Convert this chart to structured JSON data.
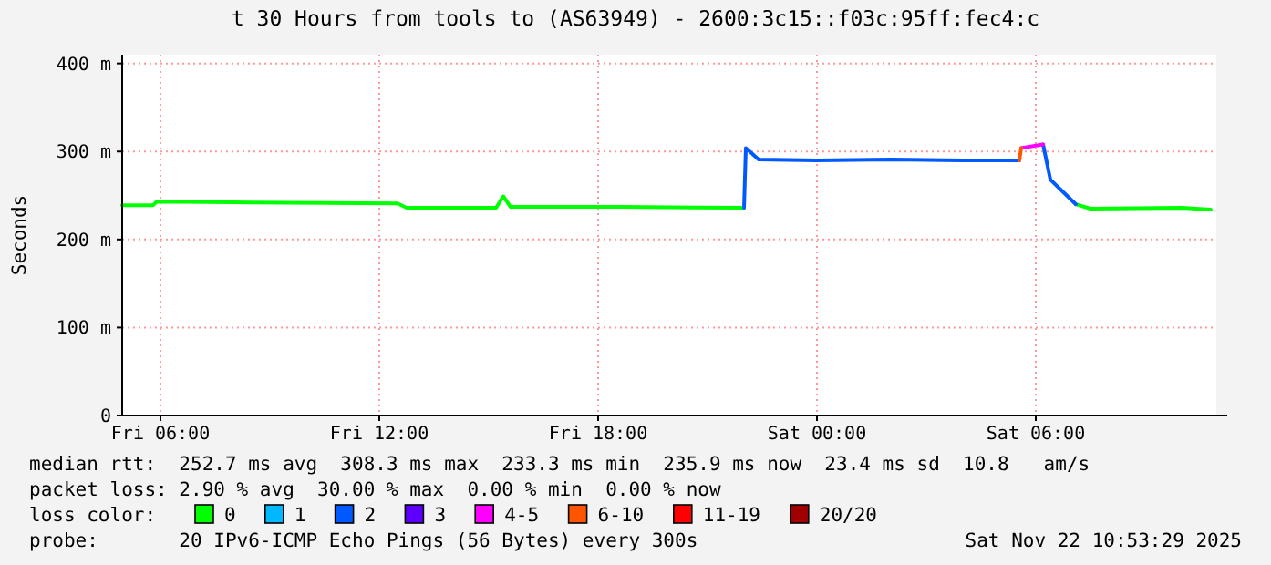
{
  "chart_data": {
    "type": "line",
    "title": "t 30 Hours from tools to (AS63949) - 2600:3c15::f03c:95ff:fec4:c",
    "ylabel": "Seconds",
    "x": [
      "2025-11-21T04:57",
      "2025-11-21T05:48",
      "2025-11-21T05:54",
      "2025-11-21T08:30",
      "2025-11-21T12:30",
      "2025-11-21T12:45",
      "2025-11-21T15:12",
      "2025-11-21T15:24",
      "2025-11-21T15:36",
      "2025-11-21T18:36",
      "2025-11-21T21:57",
      "2025-11-21T22:00",
      "2025-11-21T22:03",
      "2025-11-21T22:24",
      "2025-11-22T00:00",
      "2025-11-22T02:00",
      "2025-11-22T04:00",
      "2025-11-22T05:33",
      "2025-11-22T05:36",
      "2025-11-22T06:12",
      "2025-11-22T06:24",
      "2025-11-22T07:06",
      "2025-11-22T07:30",
      "2025-11-22T10:00",
      "2025-11-22T10:48"
    ],
    "series": [
      {
        "name": "0",
        "color": "#00ff00",
        "values": [
          239,
          239,
          243,
          242,
          241,
          236,
          236,
          249,
          237,
          237,
          236,
          236,
          null,
          null,
          null,
          null,
          null,
          null,
          null,
          null,
          null,
          240,
          235,
          236,
          234
        ]
      },
      {
        "name": "1",
        "color": "#00b8ff",
        "values": [
          null,
          null,
          null,
          null,
          null,
          null,
          null,
          null,
          null,
          null,
          null,
          null,
          null,
          null,
          null,
          null,
          null,
          null,
          null,
          null,
          null,
          null,
          null,
          null,
          null
        ]
      },
      {
        "name": "2",
        "color": "#0059ff",
        "values": [
          null,
          null,
          null,
          null,
          null,
          null,
          null,
          null,
          null,
          null,
          null,
          236,
          304,
          291,
          290,
          291,
          290,
          290,
          null,
          308,
          268,
          240,
          null,
          null,
          null
        ]
      },
      {
        "name": "3",
        "color": "#5e00ff",
        "values": [
          null,
          null,
          null,
          null,
          null,
          null,
          null,
          null,
          null,
          null,
          null,
          null,
          null,
          null,
          null,
          null,
          null,
          null,
          null,
          null,
          null,
          null,
          null,
          null,
          null
        ]
      },
      {
        "name": "4-5",
        "color": "#ff00ff",
        "values": [
          null,
          null,
          null,
          null,
          null,
          null,
          null,
          null,
          null,
          null,
          null,
          null,
          null,
          null,
          null,
          null,
          null,
          null,
          304,
          308,
          null,
          null,
          null,
          null,
          null
        ]
      },
      {
        "name": "6-10",
        "color": "#ff5500",
        "values": [
          null,
          null,
          null,
          null,
          null,
          null,
          null,
          null,
          null,
          null,
          null,
          null,
          null,
          null,
          null,
          null,
          null,
          290,
          304,
          null,
          null,
          null,
          null,
          null,
          null
        ]
      },
      {
        "name": "11-19",
        "color": "#ff0000",
        "values": [
          null,
          null,
          null,
          null,
          null,
          null,
          null,
          null,
          null,
          null,
          null,
          null,
          null,
          null,
          null,
          null,
          null,
          null,
          null,
          null,
          null,
          null,
          null,
          null,
          null
        ]
      },
      {
        "name": "20/20",
        "color": "#a10000",
        "values": [
          null,
          null,
          null,
          null,
          null,
          null,
          null,
          null,
          null,
          null,
          null,
          null,
          null,
          null,
          null,
          null,
          null,
          null,
          null,
          null,
          null,
          null,
          null,
          null,
          null
        ]
      }
    ],
    "xlim": [
      "2025-11-21T04:57",
      "2025-11-22T10:57"
    ],
    "xticks": [
      {
        "value": "2025-11-21T06:00",
        "label": "Fri 06:00"
      },
      {
        "value": "2025-11-21T12:00",
        "label": "Fri 12:00"
      },
      {
        "value": "2025-11-21T18:00",
        "label": "Fri 18:00"
      },
      {
        "value": "2025-11-22T00:00",
        "label": "Sat 00:00"
      },
      {
        "value": "2025-11-22T06:00",
        "label": "Sat 06:00"
      }
    ],
    "ylim": [
      0,
      410
    ],
    "yticks": [
      0,
      {
        "value": 100,
        "label": "100 m"
      },
      {
        "value": 200,
        "label": "200 m"
      },
      {
        "value": 300,
        "label": "300 m"
      },
      {
        "value": 400,
        "label": "400 m"
      }
    ],
    "grid": true,
    "legend": "bottom",
    "legend_title": "loss color:",
    "annotations": [
      "median rtt:  252.7 ms avg  308.3 ms max  233.3 ms min  235.9 ms now  23.4 ms sd  10.8   am/s",
      "packet loss: 2.90 % avg  30.00 % max  0.00 % min  0.00 % now",
      "probe:       20 IPv6-ICMP Echo Pings (56 Bytes) every 300s",
      "Sat Nov 22 10:53:29 2025"
    ]
  }
}
